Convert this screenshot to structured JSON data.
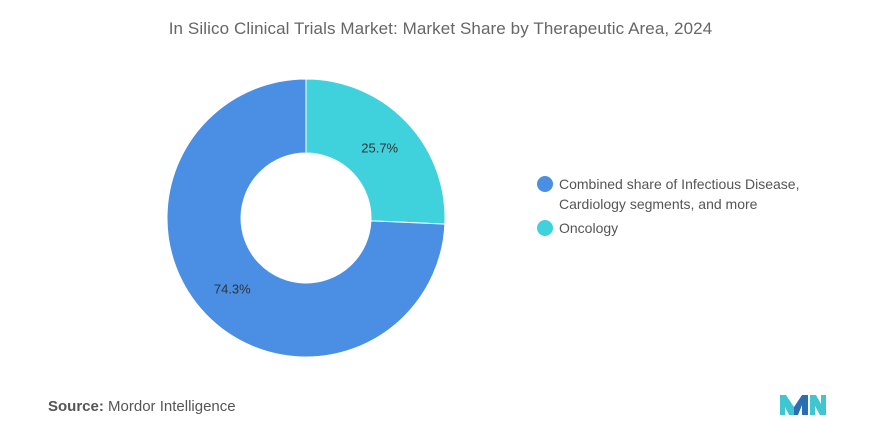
{
  "title": "In Silico Clinical Trials Market: Market Share by Therapeutic Area, 2024",
  "source": {
    "label": "Source:",
    "value": "Mordor Intelligence"
  },
  "colors": {
    "combined": "#4a8fe4",
    "oncology": "#3fd1dc"
  },
  "chart_data": {
    "type": "pie",
    "donut": true,
    "title": "In Silico Clinical Trials Market: Market Share by Therapeutic Area, 2024",
    "legend_position": "right",
    "slices": [
      {
        "name": "Oncology",
        "value": 25.7,
        "label": "25.7%",
        "color": "#3fd1dc"
      },
      {
        "name": "Combined share of Infectious Disease, Cardiology segments, and more",
        "value": 74.3,
        "label": "74.3%",
        "color": "#4a8fe4"
      }
    ]
  },
  "legend": [
    {
      "label": "Combined share of Infectious Disease, Cardiology segments, and more",
      "color": "#4a8fe4"
    },
    {
      "label": "Oncology",
      "color": "#3fd1dc"
    }
  ]
}
